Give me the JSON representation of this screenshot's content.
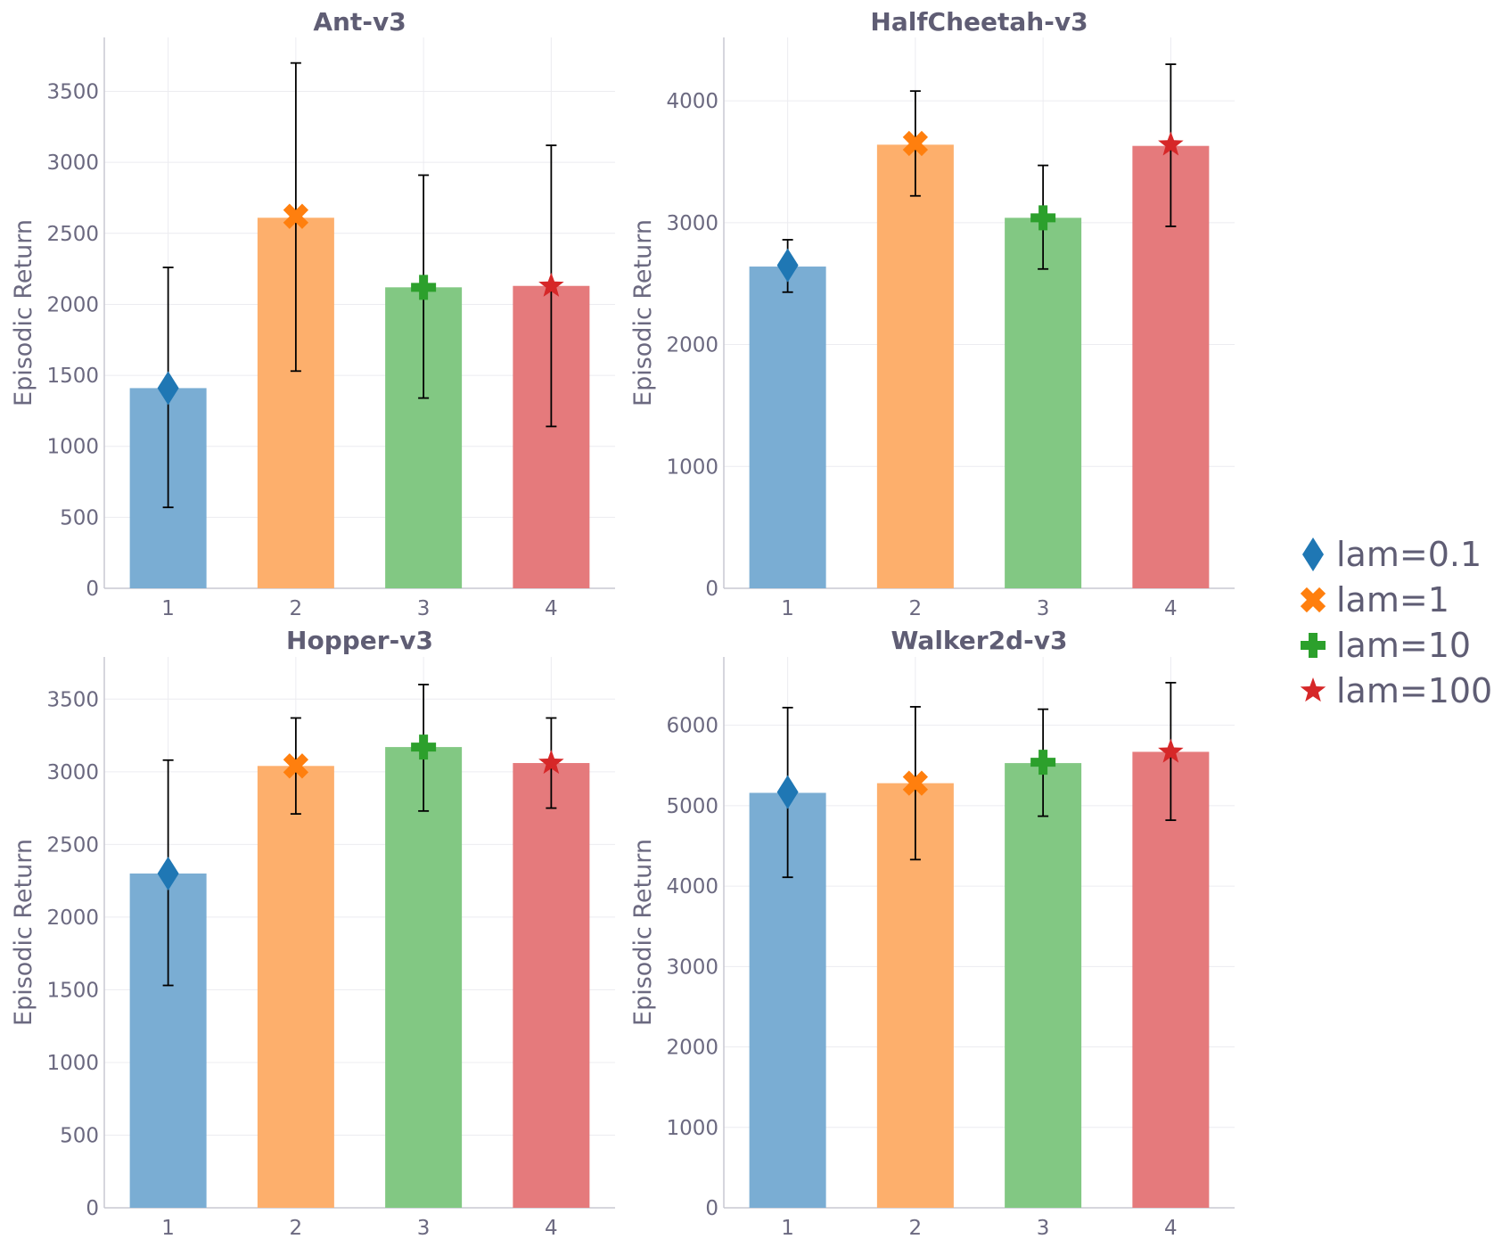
{
  "chart_data": [
    {
      "type": "bar",
      "title": "Ant-v3",
      "xlabel": "",
      "ylabel": "Episodic Return",
      "categories": [
        "1",
        "2",
        "3",
        "4"
      ],
      "values": [
        1410,
        2610,
        2120,
        2130
      ],
      "error_low": [
        570,
        1530,
        1340,
        1140
      ],
      "error_high": [
        2260,
        3700,
        2910,
        3120
      ],
      "marker_values": [
        1410,
        2620,
        2120,
        2130
      ],
      "ylim": [
        0,
        3880
      ],
      "yticks": [
        0,
        500,
        1000,
        1500,
        2000,
        2500,
        3000,
        3500
      ]
    },
    {
      "type": "bar",
      "title": "HalfCheetah-v3",
      "xlabel": "",
      "ylabel": "Episodic Return",
      "categories": [
        "1",
        "2",
        "3",
        "4"
      ],
      "values": [
        2640,
        3640,
        3040,
        3630
      ],
      "error_low": [
        2430,
        3220,
        2620,
        2970
      ],
      "error_high": [
        2860,
        4080,
        3470,
        4300
      ],
      "marker_values": [
        2650,
        3650,
        3040,
        3640
      ],
      "ylim": [
        0,
        4520
      ],
      "yticks": [
        0,
        1000,
        2000,
        3000,
        4000
      ]
    },
    {
      "type": "bar",
      "title": "Hopper-v3",
      "xlabel": "",
      "ylabel": "Episodic Return",
      "categories": [
        "1",
        "2",
        "3",
        "4"
      ],
      "values": [
        2300,
        3040,
        3170,
        3060
      ],
      "error_low": [
        1530,
        2710,
        2730,
        2750
      ],
      "error_high": [
        3080,
        3370,
        3600,
        3370
      ],
      "marker_values": [
        2300,
        3040,
        3170,
        3060
      ],
      "ylim": [
        0,
        3790
      ],
      "yticks": [
        0,
        500,
        1000,
        1500,
        2000,
        2500,
        3000,
        3500
      ]
    },
    {
      "type": "bar",
      "title": "Walker2d-v3",
      "xlabel": "",
      "ylabel": "Episodic Return",
      "categories": [
        "1",
        "2",
        "3",
        "4"
      ],
      "values": [
        5160,
        5280,
        5530,
        5670
      ],
      "error_low": [
        4110,
        4330,
        4870,
        4820
      ],
      "error_high": [
        6220,
        6230,
        6200,
        6530
      ],
      "marker_values": [
        5170,
        5280,
        5540,
        5670
      ],
      "ylim": [
        0,
        6850
      ],
      "yticks": [
        0,
        1000,
        2000,
        3000,
        4000,
        5000,
        6000
      ]
    }
  ],
  "legend": {
    "position": "right",
    "entries": [
      {
        "label": "lam=0.1",
        "marker": "diamond-icon",
        "color": "#1f77b4"
      },
      {
        "label": "lam=1",
        "marker": "x-icon",
        "color": "#ff7f0e"
      },
      {
        "label": "lam=10",
        "marker": "plus-icon",
        "color": "#2ca02c"
      },
      {
        "label": "lam=100",
        "marker": "star-icon",
        "color": "#d62728"
      }
    ]
  },
  "colors": {
    "bars": [
      "#7aadd3",
      "#fdaf6c",
      "#82c883",
      "#e57a7c"
    ],
    "markers": [
      "#1f77b4",
      "#ff7f0e",
      "#2ca02c",
      "#d62728"
    ],
    "grid": "#ececf0",
    "axis": "#c9c8d2",
    "error_bar": "#000000"
  }
}
